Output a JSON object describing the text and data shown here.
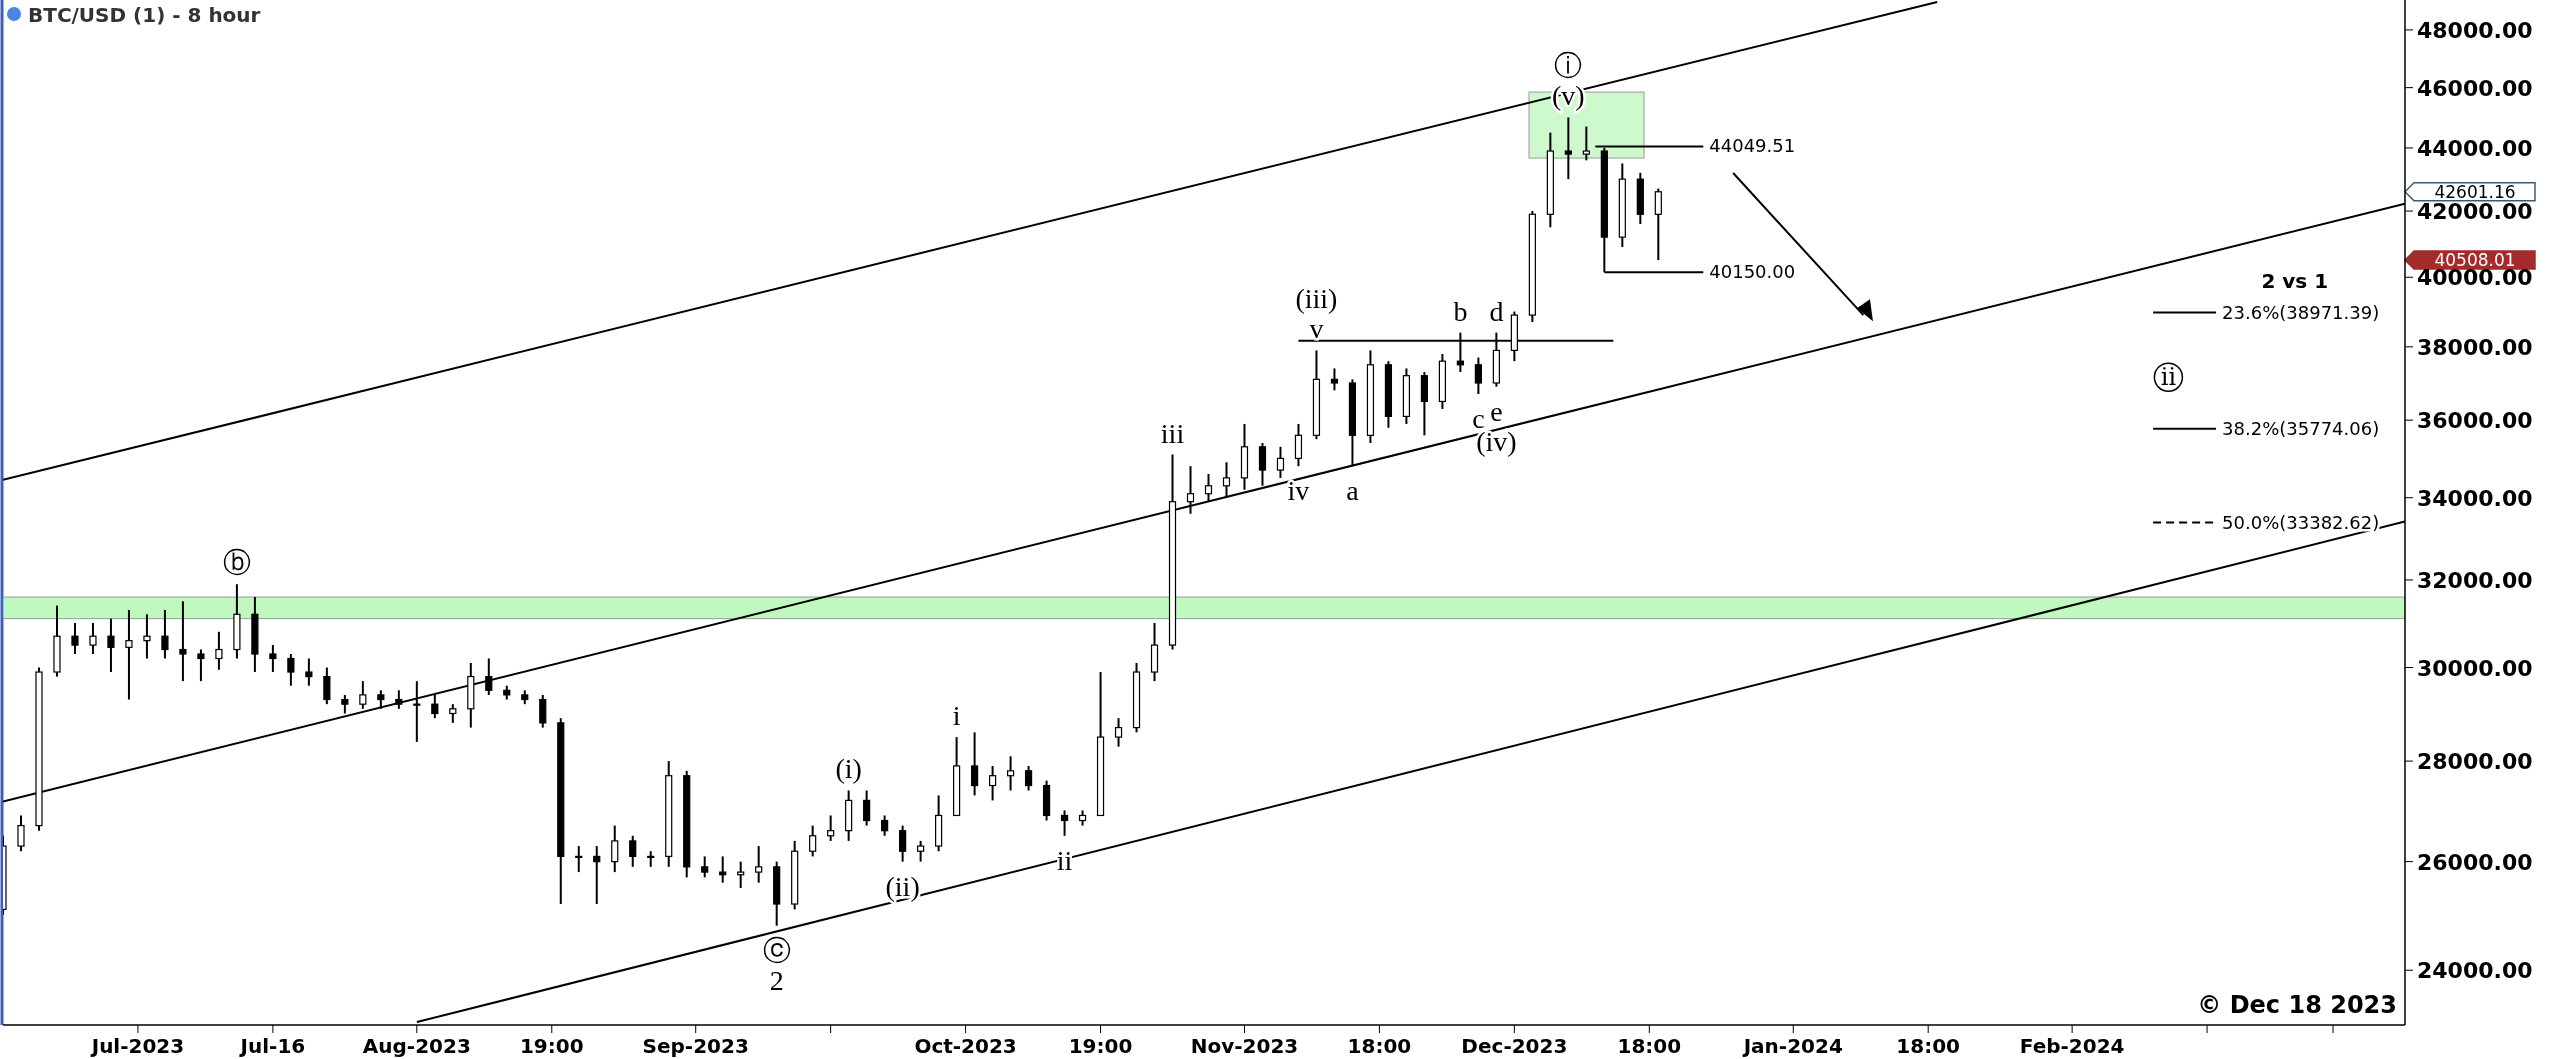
{
  "chart_data": {
    "type": "candlestick",
    "title": "BTC/USD (1) - 8 hour",
    "log": true,
    "color": "#000000",
    "x": [
      "2023-06-16",
      "2023-06-18",
      "2023-06-20",
      "2023-06-22",
      "2023-06-24",
      "2023-06-26",
      "2023-06-28",
      "2023-06-30",
      "2023-07-02",
      "2023-07-04",
      "2023-07-06",
      "2023-07-08",
      "2023-07-10",
      "2023-07-12",
      "2023-07-14",
      "2023-07-16",
      "2023-07-18",
      "2023-07-20",
      "2023-07-22",
      "2023-07-24",
      "2023-07-26",
      "2023-07-28",
      "2023-07-30",
      "2023-08-01",
      "2023-08-03",
      "2023-08-05",
      "2023-08-07",
      "2023-08-09",
      "2023-08-11",
      "2023-08-13",
      "2023-08-15",
      "2023-08-17",
      "2023-08-19",
      "2023-08-21",
      "2023-08-23",
      "2023-08-25",
      "2023-08-27",
      "2023-08-29",
      "2023-08-31",
      "2023-09-02",
      "2023-09-04",
      "2023-09-06",
      "2023-09-08",
      "2023-09-10",
      "2023-09-12",
      "2023-09-14",
      "2023-09-16",
      "2023-09-18",
      "2023-09-20",
      "2023-09-22",
      "2023-09-24",
      "2023-09-26",
      "2023-09-28",
      "2023-09-30",
      "2023-10-02",
      "2023-10-04",
      "2023-10-06",
      "2023-10-08",
      "2023-10-10",
      "2023-10-12",
      "2023-10-14",
      "2023-10-16",
      "2023-10-18",
      "2023-10-20",
      "2023-10-22",
      "2023-10-24",
      "2023-10-26",
      "2023-10-28",
      "2023-10-30",
      "2023-11-01",
      "2023-11-03",
      "2023-11-05",
      "2023-11-07",
      "2023-11-09",
      "2023-11-11",
      "2023-11-13",
      "2023-11-15",
      "2023-11-17",
      "2023-11-19",
      "2023-11-21",
      "2023-11-23",
      "2023-11-25",
      "2023-11-27",
      "2023-11-29",
      "2023-12-01",
      "2023-12-03",
      "2023-12-05",
      "2023-12-07",
      "2023-12-09",
      "2023-12-11",
      "2023-12-13",
      "2023-12-15",
      "2023-12-17"
    ],
    "ohlc": [
      [
        25100,
        26500,
        25000,
        26300
      ],
      [
        26300,
        26900,
        26200,
        26700
      ],
      [
        26700,
        30000,
        26600,
        29900
      ],
      [
        29900,
        31400,
        29800,
        30700
      ],
      [
        30700,
        31000,
        30300,
        30500
      ],
      [
        30500,
        31000,
        30300,
        30700
      ],
      [
        30700,
        31100,
        29900,
        30450
      ],
      [
        30450,
        31300,
        29300,
        30600
      ],
      [
        30600,
        31200,
        30200,
        30700
      ],
      [
        30700,
        31300,
        30200,
        30400
      ],
      [
        30400,
        31500,
        29700,
        30300
      ],
      [
        30300,
        30400,
        29700,
        30200
      ],
      [
        30200,
        30800,
        29950,
        30400
      ],
      [
        30400,
        31900,
        30200,
        31200
      ],
      [
        31200,
        31600,
        29900,
        30300
      ],
      [
        30300,
        30500,
        29900,
        30200
      ],
      [
        30200,
        30300,
        29600,
        29900
      ],
      [
        29900,
        30200,
        29600,
        29800
      ],
      [
        29800,
        30000,
        29200,
        29300
      ],
      [
        29300,
        29400,
        29000,
        29200
      ],
      [
        29200,
        29700,
        29100,
        29400
      ],
      [
        29400,
        29500,
        29100,
        29300
      ],
      [
        29300,
        29500,
        29100,
        29200
      ],
      [
        29200,
        29700,
        28400,
        29200
      ],
      [
        29200,
        29400,
        28900,
        29000
      ],
      [
        29000,
        29200,
        28800,
        29100
      ],
      [
        29100,
        30100,
        28700,
        29800
      ],
      [
        29800,
        30200,
        29400,
        29500
      ],
      [
        29500,
        29600,
        29300,
        29400
      ],
      [
        29400,
        29500,
        29200,
        29300
      ],
      [
        29300,
        29400,
        28700,
        28800
      ],
      [
        28800,
        28900,
        25200,
        26100
      ],
      [
        26100,
        26300,
        25800,
        26100
      ],
      [
        26100,
        26300,
        25200,
        26000
      ],
      [
        26000,
        26700,
        25800,
        26400
      ],
      [
        26400,
        26500,
        25900,
        26100
      ],
      [
        26100,
        26200,
        25900,
        26100
      ],
      [
        26100,
        28000,
        25900,
        27700
      ],
      [
        27700,
        27800,
        25700,
        25900
      ],
      [
        25900,
        26100,
        25700,
        25800
      ],
      [
        25800,
        26100,
        25600,
        25750
      ],
      [
        25750,
        26000,
        25500,
        25800
      ],
      [
        25800,
        26300,
        25600,
        25900
      ],
      [
        25900,
        26000,
        24800,
        25200
      ],
      [
        25200,
        26400,
        25100,
        26200
      ],
      [
        26200,
        26700,
        26100,
        26500
      ],
      [
        26500,
        26900,
        26400,
        26600
      ],
      [
        26600,
        27400,
        26400,
        27200
      ],
      [
        27200,
        27400,
        26700,
        26800
      ],
      [
        26800,
        26900,
        26500,
        26600
      ],
      [
        26600,
        26700,
        26000,
        26200
      ],
      [
        26200,
        26400,
        26000,
        26300
      ],
      [
        26300,
        27300,
        26200,
        26900
      ],
      [
        26900,
        28500,
        26900,
        27900
      ],
      [
        27900,
        28600,
        27300,
        27500
      ],
      [
        27500,
        27900,
        27200,
        27700
      ],
      [
        27700,
        28100,
        27400,
        27800
      ],
      [
        27800,
        27900,
        27400,
        27500
      ],
      [
        27500,
        27600,
        26800,
        26900
      ],
      [
        26900,
        27000,
        26500,
        26800
      ],
      [
        26800,
        27000,
        26700,
        26900
      ],
      [
        26900,
        29900,
        26900,
        28500
      ],
      [
        28500,
        28900,
        28300,
        28700
      ],
      [
        28700,
        30100,
        28600,
        29900
      ],
      [
        29900,
        31000,
        29700,
        30500
      ],
      [
        30500,
        35100,
        30400,
        33900
      ],
      [
        33900,
        34800,
        33600,
        34100
      ],
      [
        34100,
        34600,
        33900,
        34300
      ],
      [
        34300,
        34900,
        34000,
        34500
      ],
      [
        34500,
        35900,
        34200,
        35300
      ],
      [
        35300,
        35400,
        34300,
        34700
      ],
      [
        34700,
        35300,
        34500,
        35000
      ],
      [
        35000,
        35900,
        34800,
        35600
      ],
      [
        35600,
        37900,
        35500,
        37100
      ],
      [
        37100,
        37400,
        36800,
        37000
      ],
      [
        37000,
        37100,
        34800,
        35600
      ],
      [
        35600,
        37900,
        35400,
        37500
      ],
      [
        37500,
        37600,
        35800,
        36100
      ],
      [
        36100,
        37400,
        35900,
        37200
      ],
      [
        37200,
        37300,
        35600,
        36500
      ],
      [
        36500,
        37800,
        36300,
        37600
      ],
      [
        37600,
        38400,
        37300,
        37500
      ],
      [
        37500,
        37700,
        36700,
        37000
      ],
      [
        37000,
        38400,
        36900,
        37900
      ],
      [
        37900,
        39000,
        37600,
        38900
      ],
      [
        38900,
        42000,
        38700,
        41900
      ],
      [
        41900,
        44500,
        41500,
        43900
      ],
      [
        43900,
        45000,
        43000,
        43800
      ],
      [
        43800,
        44700,
        43600,
        43900
      ],
      [
        43900,
        44000,
        40150,
        41200
      ],
      [
        41200,
        43500,
        40900,
        43000
      ],
      [
        43000,
        43200,
        41600,
        41900
      ],
      [
        41900,
        42700,
        40508.01,
        42601.16
      ]
    ],
    "series": [
      {
        "type": "line",
        "color": "#000000",
        "x": [
          "2023-06-16",
          "2024-01-17"
        ],
        "values": [
          34450,
          49000
        ]
      },
      {
        "type": "line",
        "color": "#000000",
        "x": [
          "2023-06-16",
          "2024-03-09"
        ],
        "values": [
          27180,
          42230
        ]
      },
      {
        "type": "line",
        "color": "#000000",
        "x": [
          "2023-08-01",
          "2024-03-09"
        ],
        "values": [
          23100,
          33410
        ]
      },
      {
        "type": "line",
        "color": "#000000",
        "x": [
          "2023-11-07",
          "2023-12-12"
        ],
        "values": [
          38170,
          38170
        ]
      },
      {
        "type": "line",
        "color": "#000000",
        "x": [
          "2023-12-10",
          "2023-12-22"
        ],
        "values": [
          44049.51,
          44049.51
        ]
      },
      {
        "type": "line",
        "color": "#000000",
        "x": [
          "2023-12-11",
          "2023-12-22"
        ],
        "values": [
          40150,
          40150
        ]
      },
      {
        "type": "line",
        "color": "#000000",
        "x": [
          "2024-02-10",
          "2024-02-17"
        ],
        "values": [
          38971.39,
          38971.39
        ]
      },
      {
        "type": "line",
        "color": "#000000",
        "x": [
          "2024-02-10",
          "2024-02-17"
        ],
        "values": [
          35774.06,
          35774.06
        ]
      },
      {
        "type": "line",
        "color": "#000000",
        "line_style": "dashed",
        "x": [
          "2024-02-10",
          "2024-02-17"
        ],
        "values": [
          33382.62,
          33382.62
        ]
      }
    ],
    "bands": [
      {
        "axis": "y",
        "from": 31100,
        "to": 31600,
        "color": "#c0f8c0"
      }
    ],
    "annotations": [
      {
        "text": "ⓑ",
        "x": "2023-07-12",
        "y": 31900
      },
      {
        "text": "ⓒ",
        "x": "2023-09-10",
        "y": 24800
      },
      {
        "text": "2",
        "x": "2023-09-10",
        "y": 24800
      },
      {
        "text": "(i)",
        "x": "2023-09-18",
        "y": 27400
      },
      {
        "text": "(ii)",
        "x": "2023-09-24",
        "y": 26000
      },
      {
        "text": "i",
        "x": "2023-09-30",
        "y": 28500
      },
      {
        "text": "ii",
        "x": "2023-10-12",
        "y": 26500
      },
      {
        "text": "iii",
        "x": "2023-10-24",
        "y": 35100
      },
      {
        "text": "iv",
        "x": "2023-11-07",
        "y": 34800
      },
      {
        "text": "a",
        "x": "2023-11-13",
        "y": 34800
      },
      {
        "text": "v",
        "x": "2023-11-09",
        "y": 37900
      },
      {
        "text": "(iii)",
        "x": "2023-11-09",
        "y": 37900
      },
      {
        "text": "b",
        "x": "2023-11-25",
        "y": 38400
      },
      {
        "text": "d",
        "x": "2023-11-29",
        "y": 38400
      },
      {
        "text": "c",
        "x": "2023-11-27",
        "y": 36700
      },
      {
        "text": "e",
        "x": "2023-11-29",
        "y": 36900
      },
      {
        "text": "(iv)",
        "x": "2023-11-29",
        "y": 36900
      },
      {
        "text": "(v)",
        "x": "2023-12-07",
        "y": 45000
      },
      {
        "text": "ⓘ",
        "x": "2023-12-07",
        "y": 45000
      },
      {
        "text": "44049.51",
        "x": "2023-12-22",
        "y": 44049.51
      },
      {
        "text": "40150.00",
        "x": "2023-12-22",
        "y": 40150
      },
      {
        "text": "23.6%(38971.39)",
        "x": "2024-02-17",
        "y": 38971.39
      },
      {
        "text": "38.2%(35774.06)",
        "x": "2024-02-17",
        "y": 35774.06
      },
      {
        "text": "50.0%(33382.62)",
        "x": "2024-02-17",
        "y": 33382.62
      },
      "42601.16",
      "40508.01",
      "2 vs 1",
      "ⅱ",
      "© Dec 18 2023"
    ],
    "xlim": [
      "2023-06-16",
      "2024-03-09"
    ],
    "xticks": [
      {
        "value": "2023-07-01",
        "label": "Jul-2023"
      },
      {
        "value": "2023-07-16",
        "label": "Jul-16"
      },
      {
        "value": "2023-08-01",
        "label": "Aug-2023"
      },
      {
        "value": "2023-08-16",
        "label": "19:00"
      },
      {
        "value": "2023-09-01",
        "label": "Sep-2023"
      },
      {
        "value": "2023-09-16",
        "label": null
      },
      {
        "value": "2023-10-01",
        "label": "Oct-2023"
      },
      {
        "value": "2023-10-16",
        "label": "19:00"
      },
      {
        "value": "2023-11-01",
        "label": "Nov-2023"
      },
      {
        "value": "2023-11-16",
        "label": "18:00"
      },
      {
        "value": "2023-12-01",
        "label": "Dec-2023"
      },
      {
        "value": "2023-12-16",
        "label": "18:00"
      },
      {
        "value": "2024-01-01",
        "label": "Jan-2024"
      },
      {
        "value": "2024-01-16",
        "label": "18:00"
      },
      {
        "value": "2024-02-01",
        "label": "Feb-2024"
      },
      {
        "value": "2024-02-16",
        "label": null
      },
      {
        "value": "2024-03-01",
        "label": null
      }
    ],
    "ylim": [
      23050,
      49070
    ],
    "yticks": [
      {
        "value": 24000,
        "label": "24000.00"
      },
      {
        "value": 26000,
        "label": "26000.00"
      },
      {
        "value": 28000,
        "label": "28000.00"
      },
      {
        "value": 30000,
        "label": "30000.00"
      },
      {
        "value": 32000,
        "label": "32000.00"
      },
      {
        "value": 34000,
        "label": "34000.00"
      },
      {
        "value": 36000,
        "label": "36000.00"
      },
      {
        "value": 38000,
        "label": "38000.00"
      },
      {
        "value": 40000,
        "label": "40000.00"
      },
      {
        "value": 42000,
        "label": "42000.00"
      },
      {
        "value": 44000,
        "label": "44000.00"
      },
      {
        "value": 46000,
        "label": "46000.00"
      },
      {
        "value": 48000,
        "label": "48000.00"
      }
    ]
  }
}
